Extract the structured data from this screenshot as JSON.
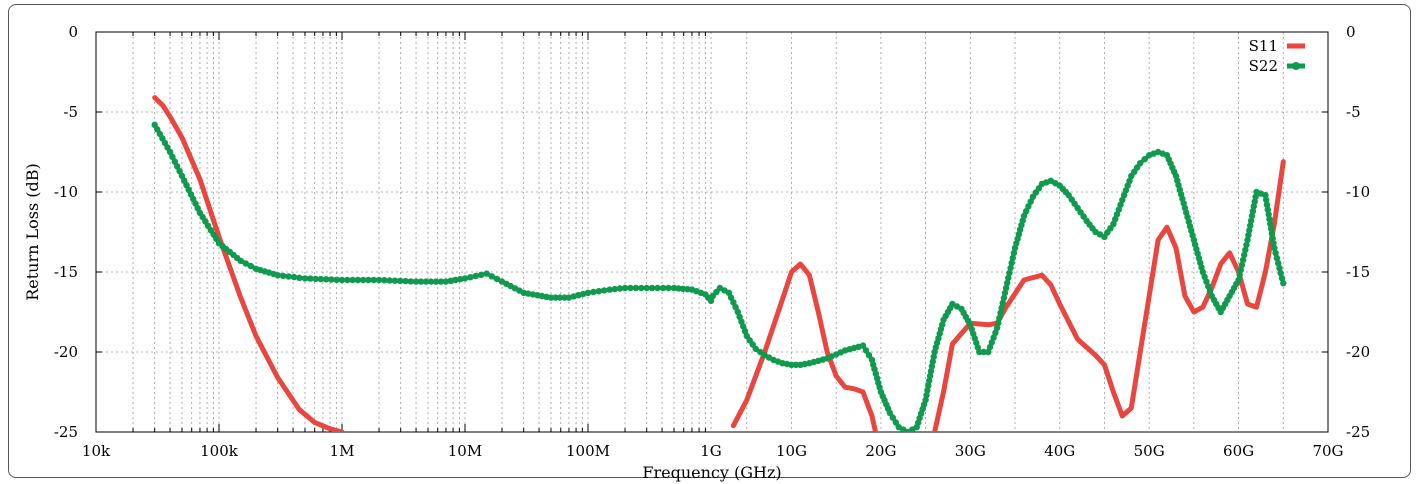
{
  "chart_data": {
    "type": "line",
    "title": "",
    "xlabel": "Frequency (GHz)",
    "ylabel": "Return Loss (dB)",
    "ylim": [
      -25,
      0
    ],
    "y_ticks": [
      0,
      -5,
      -10,
      -15,
      -20,
      -25
    ],
    "x_axis": {
      "description": "split axis: logarithmic 10k..1G, then linear 1G..70G",
      "log_tick_labels": [
        "10k",
        "100k",
        "1M",
        "10M",
        "100M",
        "1G"
      ],
      "linear_tick_labels": [
        "10G",
        "20G",
        "30G",
        "40G",
        "50G",
        "60G",
        "70G"
      ],
      "log_range_hz": [
        10000,
        1000000000
      ],
      "linear_range_ghz": [
        1,
        70
      ]
    },
    "grid": true,
    "legend_position": "top-right",
    "series": [
      {
        "name": "S11",
        "color": "#e8463f",
        "marker": "line",
        "segments": [
          {
            "hz": [
              30000,
              35000,
              40000,
              50000,
              70000,
              100000,
              150000,
              200000,
              300000,
              450000,
              600000,
              800000,
              1000000
            ],
            "y": [
              -4.1,
              -4.6,
              -5.3,
              -6.6,
              -9.2,
              -12.8,
              -16.6,
              -19.0,
              -21.6,
              -23.6,
              -24.4,
              -24.8,
              -25.0
            ]
          },
          {
            "ghz": [
              3.5,
              5,
              7,
              9,
              10,
              11,
              12,
              13,
              14,
              15,
              16,
              17,
              18,
              19,
              20,
              21,
              22,
              23,
              24,
              25,
              26,
              27,
              28,
              30,
              32,
              33,
              34,
              36,
              38,
              39,
              40,
              42,
              44,
              45,
              46,
              47,
              48,
              49,
              50,
              51,
              52,
              53,
              54,
              55,
              56,
              57,
              58,
              59,
              60,
              61,
              62,
              63,
              64,
              65
            ],
            "y": [
              -24.6,
              -23.0,
              -20.0,
              -16.7,
              -15.0,
              -14.5,
              -15.2,
              -17.5,
              -20.0,
              -21.5,
              -22.2,
              -22.3,
              -22.5,
              -24.0,
              -26.5,
              -28.0,
              -29.0,
              -28.5,
              -27.5,
              -26.5,
              -25.0,
              -22.5,
              -19.5,
              -18.2,
              -18.3,
              -18.2,
              -17.2,
              -15.5,
              -15.2,
              -15.8,
              -17.0,
              -19.2,
              -20.2,
              -20.8,
              -22.5,
              -24.0,
              -23.5,
              -20.0,
              -16.5,
              -13.0,
              -12.2,
              -13.5,
              -16.5,
              -17.5,
              -17.2,
              -16.0,
              -14.5,
              -13.8,
              -15.0,
              -17.0,
              -17.2,
              -15.0,
              -12.0,
              -8.1
            ]
          }
        ]
      },
      {
        "name": "S22",
        "color": "#109a4e",
        "marker": "filled-circle",
        "segments": [
          {
            "hz": [
              30000,
              40000,
              50000,
              70000,
              100000,
              150000,
              200000,
              300000,
              500000,
              1000000,
              2000000,
              4000000,
              7000000,
              10000000,
              15000000,
              20000000,
              30000000,
              50000000,
              70000000,
              100000000,
              150000000,
              200000000,
              300000000,
              500000000,
              700000000,
              900000000,
              1000000000
            ],
            "y": [
              -5.8,
              -7.5,
              -9.0,
              -11.3,
              -13.2,
              -14.3,
              -14.8,
              -15.2,
              -15.4,
              -15.5,
              -15.5,
              -15.6,
              -15.6,
              -15.4,
              -15.1,
              -15.6,
              -16.3,
              -16.6,
              -16.6,
              -16.3,
              -16.1,
              -16.0,
              -16.0,
              -16.0,
              -16.1,
              -16.4,
              -16.8
            ]
          },
          {
            "ghz": [
              1.2,
              2,
              3,
              4,
              5,
              6,
              7,
              8,
              9,
              10,
              11,
              12,
              14,
              16,
              18,
              19,
              20,
              21,
              22,
              23,
              24,
              25,
              26,
              27,
              28,
              29,
              30,
              31,
              32,
              33,
              34,
              35,
              36,
              37,
              38,
              39,
              40,
              41,
              42,
              43,
              44,
              45,
              46,
              47,
              48,
              49,
              50,
              51,
              52,
              53,
              54,
              55,
              56,
              57,
              58,
              59,
              60,
              61,
              62,
              63,
              64,
              65
            ],
            "y": [
              -16.5,
              -16.0,
              -16.3,
              -17.5,
              -19.0,
              -19.8,
              -20.2,
              -20.5,
              -20.7,
              -20.8,
              -20.8,
              -20.7,
              -20.4,
              -19.9,
              -19.6,
              -20.5,
              -22.5,
              -23.8,
              -24.7,
              -25.0,
              -24.7,
              -23.0,
              -20.0,
              -18.0,
              -17.0,
              -17.3,
              -18.3,
              -20.0,
              -20.0,
              -18.5,
              -16.0,
              -13.5,
              -11.5,
              -10.3,
              -9.5,
              -9.3,
              -9.6,
              -10.2,
              -11.0,
              -11.8,
              -12.5,
              -12.8,
              -12.0,
              -10.5,
              -9.0,
              -8.2,
              -7.7,
              -7.5,
              -7.7,
              -9.0,
              -11.0,
              -13.0,
              -15.0,
              -16.5,
              -17.5,
              -16.5,
              -15.5,
              -13.0,
              -10.0,
              -10.2,
              -13.5,
              -15.7
            ]
          }
        ]
      }
    ]
  }
}
